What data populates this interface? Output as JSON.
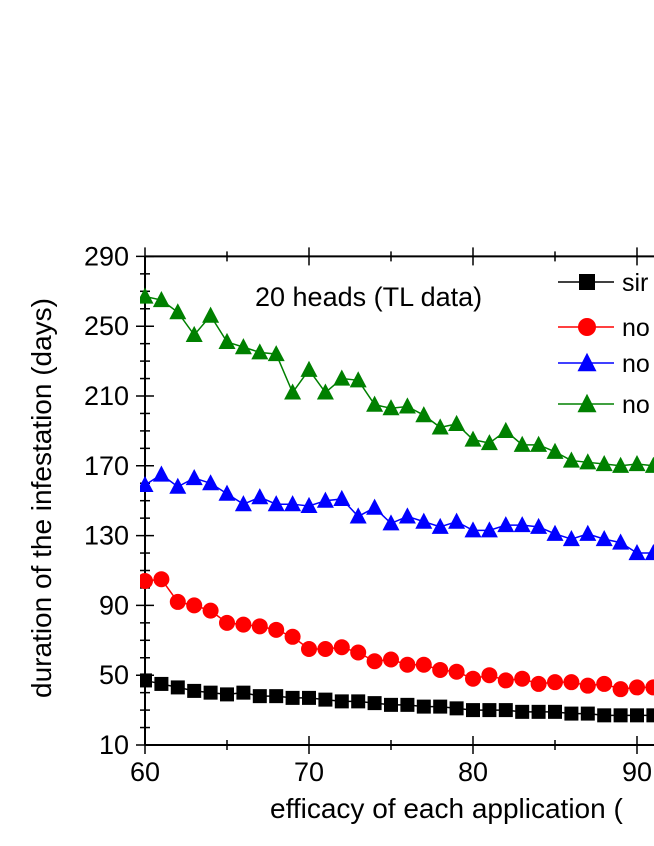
{
  "chart_data": {
    "type": "line",
    "title": "",
    "annotation": "20 heads (TL data)",
    "xlabel": "efficacy of each application (",
    "ylabel": "duration of the infestation (days)",
    "xlim": [
      60,
      91
    ],
    "ylim": [
      10,
      290
    ],
    "xticks": [
      60,
      70,
      80,
      90
    ],
    "xtick_labels": [
      "60",
      "70",
      "80",
      "90"
    ],
    "yticks": [
      10,
      50,
      90,
      130,
      170,
      210,
      250,
      290
    ],
    "ytick_labels": [
      "10",
      "50",
      "90",
      "130",
      "170",
      "210",
      "250",
      "290"
    ],
    "x": [
      60,
      61,
      62,
      63,
      64,
      65,
      66,
      67,
      68,
      69,
      70,
      71,
      72,
      73,
      74,
      75,
      76,
      77,
      78,
      79,
      80,
      81,
      82,
      83,
      84,
      85,
      86,
      87,
      88,
      89,
      90,
      91
    ],
    "legend_position": "top-right",
    "grid": false,
    "series": [
      {
        "name": "sir",
        "marker": "square",
        "color": "#000000",
        "values": [
          47,
          45,
          43,
          41,
          40,
          39,
          40,
          38,
          38,
          37,
          37,
          36,
          35,
          35,
          34,
          33,
          33,
          32,
          32,
          31,
          30,
          30,
          30,
          29,
          29,
          29,
          28,
          28,
          27,
          27,
          27,
          27
        ]
      },
      {
        "name": "no",
        "marker": "circle",
        "color": "#ff0000",
        "values": [
          104,
          105,
          92,
          90,
          87,
          80,
          79,
          78,
          76,
          72,
          65,
          65,
          66,
          63,
          58,
          59,
          56,
          56,
          53,
          52,
          48,
          50,
          47,
          48,
          45,
          46,
          46,
          44,
          45,
          42,
          43,
          43
        ]
      },
      {
        "name": "no",
        "marker": "triangle",
        "color": "#0000ff",
        "values": [
          159,
          165,
          158,
          163,
          160,
          154,
          148,
          152,
          148,
          148,
          147,
          150,
          151,
          141,
          146,
          137,
          141,
          138,
          135,
          138,
          133,
          133,
          136,
          136,
          135,
          131,
          128,
          131,
          128,
          126,
          120,
          120
        ]
      },
      {
        "name": "no",
        "marker": "triangle",
        "color": "#008000",
        "values": [
          267,
          265,
          258,
          245,
          256,
          241,
          238,
          235,
          234,
          212,
          225,
          212,
          220,
          219,
          205,
          203,
          204,
          199,
          192,
          194,
          185,
          183,
          190,
          182,
          182,
          178,
          173,
          172,
          171,
          170,
          171,
          170
        ]
      }
    ]
  }
}
